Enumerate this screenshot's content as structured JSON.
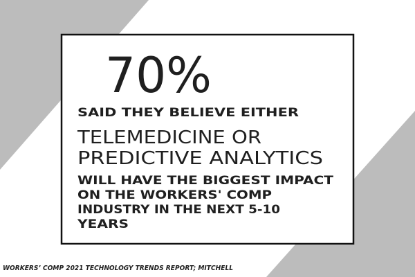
{
  "headline": "70%",
  "intro": "SAID THEY BELIEVE EITHER",
  "highlight": [
    "TELEMEDICINE OR",
    "PREDICTIVE ANALYTICS"
  ],
  "conclusion": [
    "WILL HAVE THE BIGGEST IMPACT",
    "ON THE WORKERS' COMP",
    "INDUSTRY IN THE NEXT 5-10",
    "YEARS"
  ],
  "source": "WORKERS’ COMP 2021 TECHNOLOGY TRENDS REPORT; MITCHELL"
}
